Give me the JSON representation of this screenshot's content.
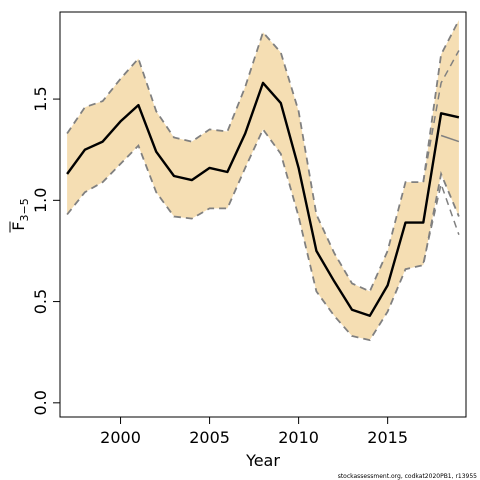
{
  "chart_data": {
    "type": "area",
    "x_label": "Year",
    "y_label": {
      "main": "F",
      "sub": "3−5"
    },
    "xlim": [
      1996.6,
      2019.4
    ],
    "ylim": [
      -0.07,
      1.93
    ],
    "x_ticks": [
      2000,
      2005,
      2010,
      2015
    ],
    "x_tick_labels": [
      "2000",
      "2005",
      "2010",
      "2015"
    ],
    "y_ticks": [
      0.0,
      0.5,
      1.0,
      1.5
    ],
    "y_tick_labels": [
      "0.0",
      "0.5",
      "1.0",
      "1.5"
    ],
    "grid": false,
    "credit": "stockassessment.org, codkat2020PB1, r13955",
    "colors": {
      "band": "#f5deb3",
      "estimate": "#000000",
      "retro": "#808080",
      "frame": "#000000"
    },
    "series": [
      {
        "role": "confidence-band",
        "x": [
          1997,
          1998,
          1999,
          2000,
          2001,
          2002,
          2003,
          2004,
          2005,
          2006,
          2007,
          2008,
          2009,
          2010,
          2011,
          2012,
          2013,
          2014,
          2015,
          2016,
          2017,
          2018,
          2019
        ],
        "upper": [
          1.33,
          1.46,
          1.49,
          1.6,
          1.7,
          1.44,
          1.31,
          1.29,
          1.35,
          1.34,
          1.56,
          1.83,
          1.73,
          1.44,
          0.93,
          0.74,
          0.59,
          0.55,
          0.75,
          1.09,
          1.09,
          1.72,
          1.89
        ],
        "lower": [
          0.93,
          1.04,
          1.09,
          1.18,
          1.27,
          1.04,
          0.92,
          0.91,
          0.96,
          0.96,
          1.16,
          1.35,
          1.23,
          0.92,
          0.55,
          0.43,
          0.33,
          0.31,
          0.45,
          0.66,
          0.68,
          1.13,
          0.92
        ]
      },
      {
        "role": "estimate",
        "x": [
          1997,
          1998,
          1999,
          2000,
          2001,
          2002,
          2003,
          2004,
          2005,
          2006,
          2007,
          2008,
          2009,
          2010,
          2011,
          2012,
          2013,
          2014,
          2015,
          2016,
          2017,
          2018,
          2019
        ],
        "y": [
          1.13,
          1.25,
          1.29,
          1.39,
          1.47,
          1.24,
          1.12,
          1.1,
          1.16,
          1.14,
          1.33,
          1.58,
          1.48,
          1.16,
          0.75,
          0.6,
          0.46,
          0.43,
          0.58,
          0.89,
          0.89,
          1.43,
          1.41
        ]
      },
      {
        "role": "retrospective-estimate",
        "x": [
          2018,
          2019
        ],
        "y": [
          1.32,
          1.29
        ]
      },
      {
        "role": "retrospective-upper",
        "x": [
          2017,
          2018,
          2019
        ],
        "y": [
          1.09,
          1.58,
          1.74
        ]
      },
      {
        "role": "retrospective-lower",
        "x": [
          2017,
          2018,
          2019
        ],
        "y": [
          0.69,
          1.08,
          0.83
        ]
      }
    ]
  }
}
